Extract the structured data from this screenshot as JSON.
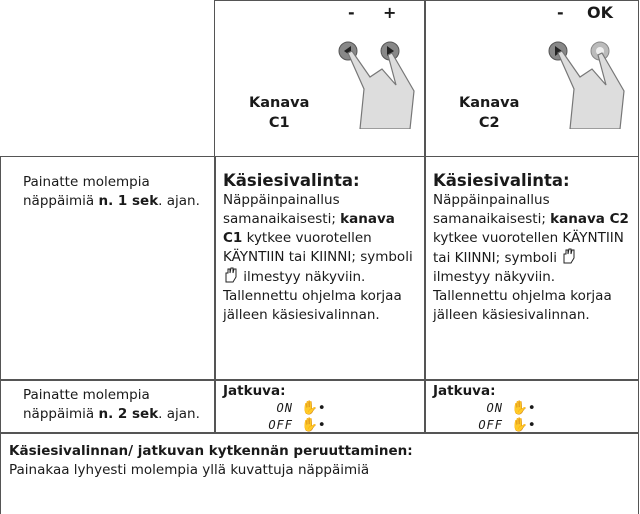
{
  "header": {
    "columns": [
      {
        "buttons": [
          "-",
          "+"
        ],
        "channel_label": "Kanava",
        "channel": "C1"
      },
      {
        "buttons": [
          "-",
          "OK"
        ],
        "channel_label": "Kanava",
        "channel": "C2"
      }
    ]
  },
  "table": {
    "rows": [
      {
        "action": {
          "before": "Painatte molempia näppäimiä ",
          "bold": "n. 1 sek",
          "after": ". ajan."
        },
        "cells": [
          {
            "title": "Käsiesivalinta:",
            "before": "Näppäinpainallus samanaikaisesti; ",
            "bold": "kanava C1",
            "middle": " kytkee vuorotellen KÄYNTIIN tai KIINNI; symboli ",
            "after": " ilmestyy näkyviin. Tallennettu ohjelma korjaa jälleen käsiesivalinnan."
          },
          {
            "title": "Käsiesivalinta:",
            "before": "Näppäinpainallus samanaikaisesti; ",
            "bold": "kanava C2",
            "middle": " kytkee vuorotellen KÄYNTIIN tai KIINNI; symboli ",
            "after": " ilmestyy näkyviin. Tallennettu ohjelma korjaa jälleen käsiesivalinnan."
          }
        ]
      },
      {
        "action": {
          "before": "Painatte molempia näppäimiä ",
          "bold": "n. 2 sek",
          "after": ". ajan."
        },
        "cells": [
          {
            "title": "Jatkuva:",
            "states": [
              "ON",
              "OFF"
            ]
          },
          {
            "title": "Jatkuva:",
            "states": [
              "ON",
              "OFF"
            ]
          }
        ]
      }
    ]
  },
  "footer": {
    "title": "Käsiesivalinnan/ jatkuvan kytkennän peruuttaminen:",
    "text": "Painakaa lyhyesti molempia yllä kuvattuja näppäimiä"
  }
}
